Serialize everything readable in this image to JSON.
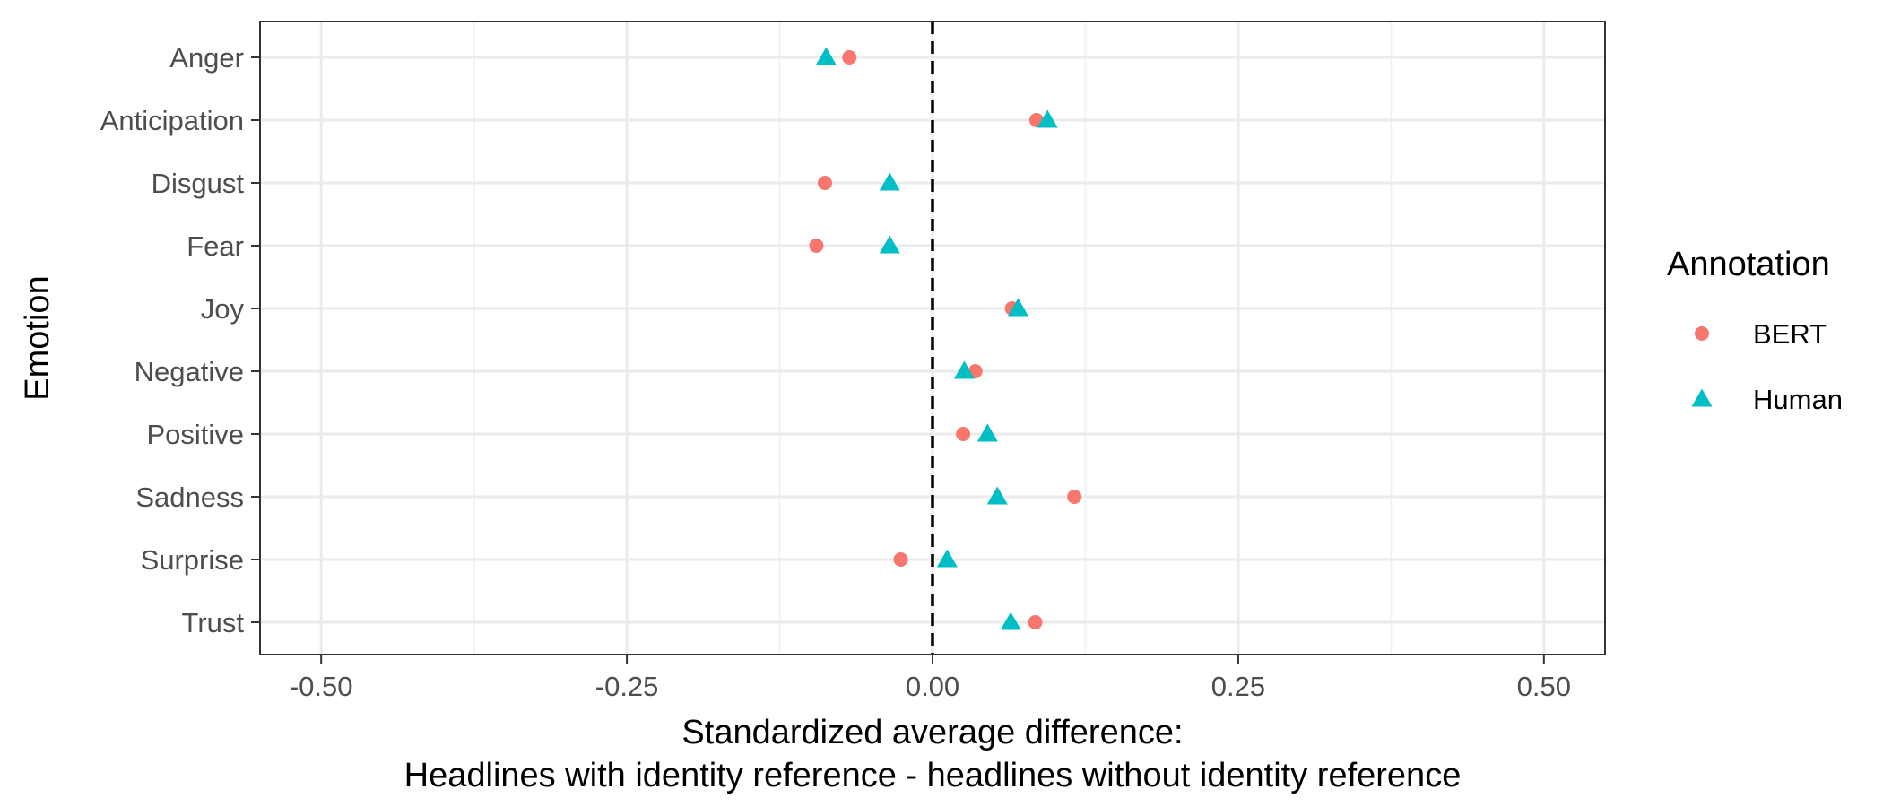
{
  "chart_data": {
    "type": "scatter",
    "title": "",
    "xlabel_lines": [
      "Standardized average difference:",
      "Headlines with identity reference - headlines without identity reference"
    ],
    "ylabel": "Emotion",
    "xlim": [
      -0.55,
      0.55
    ],
    "x_ticks": [
      {
        "value": -0.5,
        "label": "-0.50"
      },
      {
        "value": -0.25,
        "label": "-0.25"
      },
      {
        "value": 0.0,
        "label": "0.00"
      },
      {
        "value": 0.25,
        "label": "0.25"
      },
      {
        "value": 0.5,
        "label": "0.50"
      }
    ],
    "x_minor_ticks": [
      -0.375,
      -0.125,
      0.125,
      0.375
    ],
    "categories": [
      "Anger",
      "Anticipation",
      "Disgust",
      "Fear",
      "Joy",
      "Negative",
      "Positive",
      "Sadness",
      "Surprise",
      "Trust"
    ],
    "reference_line_x": 0,
    "grid": true,
    "legend": {
      "title": "Annotation",
      "position": "right"
    },
    "series": [
      {
        "name": "BERT",
        "marker": "circle",
        "color": "#F8766D",
        "values": [
          -0.068,
          0.085,
          -0.088,
          -0.095,
          0.065,
          0.035,
          0.025,
          0.116,
          -0.026,
          0.084
        ]
      },
      {
        "name": "Human",
        "marker": "triangle",
        "color": "#00BFC4",
        "values": [
          -0.087,
          0.094,
          -0.035,
          -0.035,
          0.07,
          0.026,
          0.045,
          0.053,
          0.012,
          0.064
        ]
      }
    ]
  }
}
